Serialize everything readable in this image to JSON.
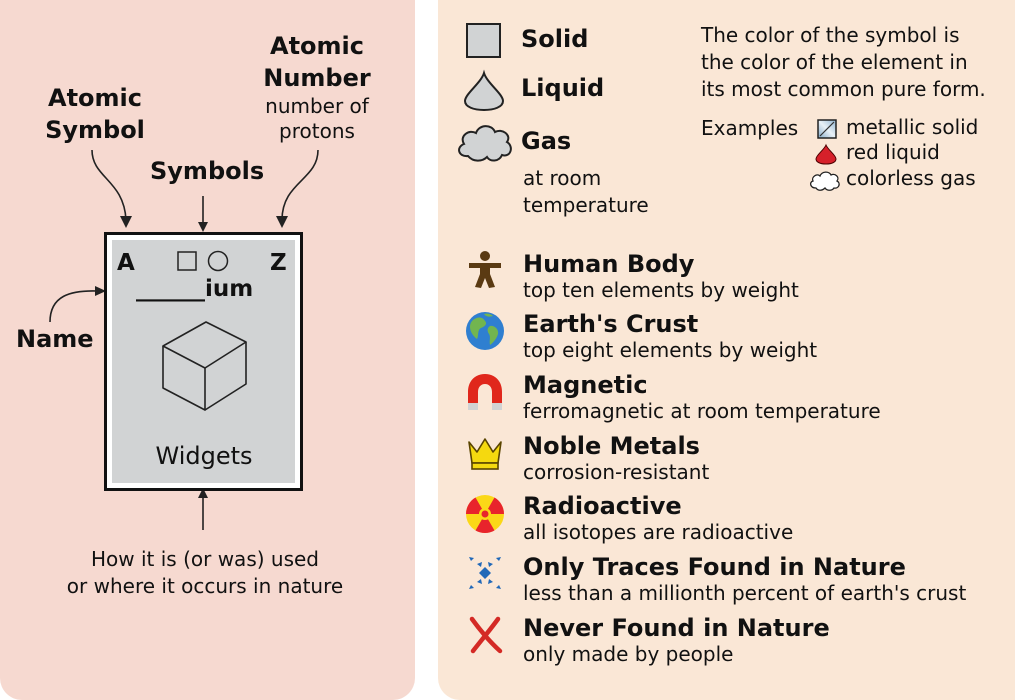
{
  "key_diagram": {
    "atomic_symbol_label": [
      "Atomic",
      "Symbol"
    ],
    "atomic_number_label": [
      "Atomic",
      "Number"
    ],
    "atomic_number_desc": [
      "number of",
      "protons"
    ],
    "symbols_label": "Symbols",
    "name_label": "Name",
    "card": {
      "symbol_placeholder": "A",
      "number_placeholder": "Z",
      "name_placeholder": "______ium",
      "uses_placeholder": "Widgets"
    },
    "uses_caption": [
      "How it is (or was) used",
      "or where it occurs in nature"
    ]
  },
  "states": {
    "solid_label": "Solid",
    "liquid_label": "Liquid",
    "gas_label": "Gas",
    "room_temp_note": [
      "at room",
      "temperature"
    ],
    "color_note": [
      "The color of the symbol is",
      "the color of the element in",
      "its most common pure form."
    ],
    "examples_label": "Examples",
    "examples": [
      "metallic solid",
      "red liquid",
      "colorless gas"
    ]
  },
  "legend": [
    {
      "icon": "human-body-icon",
      "title": "Human Body",
      "desc": "top ten elements by weight"
    },
    {
      "icon": "earth-icon",
      "title": "Earth's Crust",
      "desc": "top eight elements by weight"
    },
    {
      "icon": "magnet-icon",
      "title": "Magnetic",
      "desc": "ferromagnetic at room temperature"
    },
    {
      "icon": "crown-icon",
      "title": "Noble Metals",
      "desc": "corrosion-resistant"
    },
    {
      "icon": "radioactive-icon",
      "title": "Radioactive",
      "desc": "all isotopes are radioactive"
    },
    {
      "icon": "traces-icon",
      "title": "Only Traces Found in Nature",
      "desc": "less than a millionth percent of earth's crust"
    },
    {
      "icon": "x-mark-icon",
      "title": "Never Found in Nature",
      "desc": "only made by people"
    }
  ],
  "colors": {
    "left_bg": "#f6d9d0",
    "right_bg": "#fae7d6",
    "card_fill": "#d1d3d4",
    "human": "#5a3a12",
    "earth_ocean": "#2f7fd0",
    "earth_land": "#72b54f",
    "magnet": "#e0271c",
    "crown": "#f5d90f",
    "radioactive_ring": "#e8242c",
    "radioactive_core": "#fbd817",
    "traces": "#2068b8",
    "x_mark": "#d42a25"
  }
}
